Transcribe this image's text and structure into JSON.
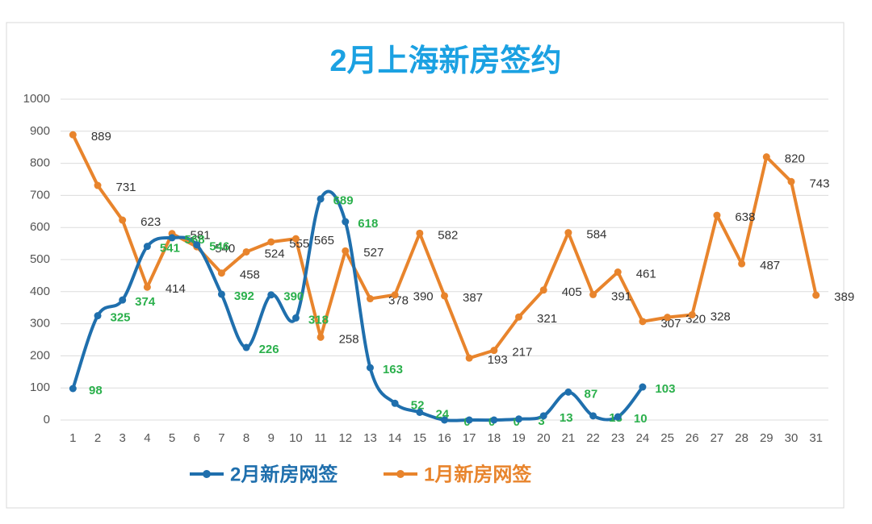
{
  "chart_data": {
    "type": "line",
    "title": "2月上海新房签约",
    "categories": [
      "1",
      "2",
      "3",
      "4",
      "5",
      "6",
      "7",
      "8",
      "9",
      "10",
      "11",
      "12",
      "13",
      "14",
      "15",
      "16",
      "17",
      "18",
      "19",
      "20",
      "21",
      "22",
      "23",
      "24",
      "25",
      "26",
      "27",
      "28",
      "29",
      "30",
      "31"
    ],
    "series": [
      {
        "name": "2月新房网签",
        "color": "#1f6fad",
        "smooth": true,
        "label_color": "#2bb04c",
        "values": [
          98,
          325,
          374,
          541,
          568,
          546,
          392,
          226,
          390,
          318,
          689,
          618,
          163,
          52,
          24,
          0,
          0,
          0,
          3,
          13,
          87,
          13,
          10,
          103,
          null,
          null,
          null,
          null,
          null,
          null,
          null
        ]
      },
      {
        "name": "1月新房网签",
        "color": "#e8842c",
        "smooth": false,
        "label_color": "#333333",
        "values": [
          889,
          731,
          623,
          414,
          581,
          540,
          458,
          524,
          555,
          565,
          258,
          527,
          378,
          390,
          582,
          387,
          193,
          217,
          321,
          405,
          584,
          391,
          461,
          307,
          320,
          328,
          638,
          487,
          820,
          743,
          389
        ]
      }
    ],
    "ylim": [
      0,
      1000
    ],
    "yticks": [
      0,
      100,
      200,
      300,
      400,
      500,
      600,
      700,
      800,
      900,
      1000
    ],
    "grid": true,
    "legend": "bottom"
  }
}
